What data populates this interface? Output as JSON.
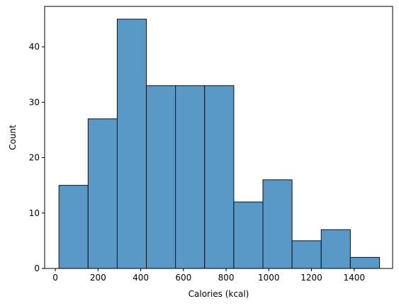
{
  "chart_data": {
    "type": "bar",
    "subtype": "histogram",
    "title": "",
    "xlabel": "Calories (kcal)",
    "ylabel": "Count",
    "bin_edges": [
      17,
      153.5,
      290,
      426.5,
      563,
      699.5,
      836,
      972.5,
      1109,
      1245.5,
      1382,
      1518.5
    ],
    "counts": [
      15,
      27,
      45,
      33,
      33,
      33,
      12,
      16,
      5,
      7,
      2
    ],
    "xlim": [
      -50,
      1580
    ],
    "ylim": [
      0,
      47.3
    ],
    "xticks": [
      0,
      200,
      400,
      600,
      800,
      1000,
      1200,
      1400
    ],
    "yticks": [
      0,
      10,
      20,
      30,
      40
    ],
    "grid": false,
    "colors": {
      "bar_fill": "#5899c8",
      "bar_edge": "#111111",
      "axis": "#000000"
    }
  }
}
